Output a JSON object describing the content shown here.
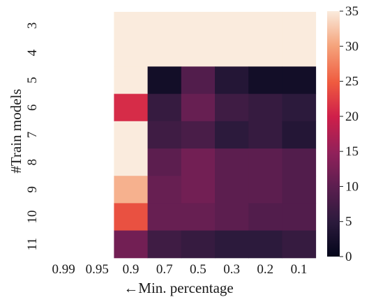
{
  "chart_data": {
    "type": "heatmap",
    "title": "",
    "xlabel": "←Min. percentage",
    "ylabel": "#Train models",
    "x_categories": [
      "0.99",
      "0.95",
      "0.9",
      "0.7",
      "0.5",
      "0.3",
      "0.2",
      "0.1"
    ],
    "y_categories": [
      "3",
      "4",
      "5",
      "6",
      "7",
      "8",
      "9",
      "10",
      "11"
    ],
    "values": [
      [
        null,
        null,
        35,
        35,
        35,
        35,
        35,
        35
      ],
      [
        null,
        null,
        35,
        35,
        35,
        35,
        35,
        35
      ],
      [
        null,
        null,
        35,
        2,
        9,
        4,
        2,
        2
      ],
      [
        null,
        null,
        21,
        6,
        11,
        7,
        6,
        5
      ],
      [
        null,
        null,
        35,
        7,
        8,
        5,
        6,
        4
      ],
      [
        null,
        null,
        35,
        10,
        12,
        10,
        10,
        9
      ],
      [
        null,
        null,
        31,
        11,
        12,
        10,
        10,
        9
      ],
      [
        null,
        null,
        24,
        11,
        11,
        10,
        9,
        9
      ],
      [
        null,
        null,
        12,
        7,
        6,
        5,
        5,
        6
      ]
    ],
    "colorbar": {
      "min": 0,
      "max": 35,
      "ticks": [
        "0",
        "5",
        "10",
        "15",
        "20",
        "25",
        "30",
        "35"
      ],
      "colormap": "rocket"
    }
  }
}
